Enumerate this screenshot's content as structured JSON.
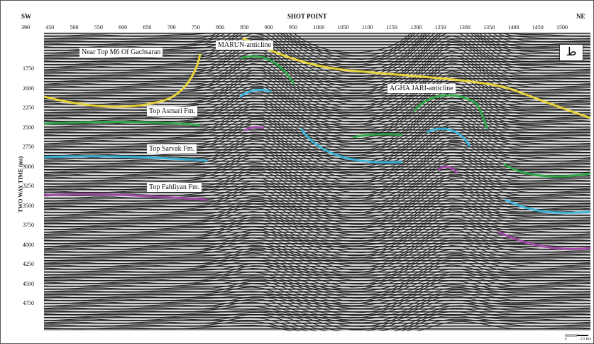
{
  "header": {
    "left_dir": "SW",
    "right_dir": "NE",
    "title": "SHOT POINT"
  },
  "x_ticks": [
    "390",
    "450",
    "500",
    "550",
    "600",
    "650",
    "700",
    "750",
    "800",
    "850",
    "900",
    "950",
    "1000",
    "1050",
    "1100",
    "1150",
    "1200",
    "1250",
    "1300",
    "1350",
    "1400",
    "1450",
    "1500"
  ],
  "y_axis": {
    "title": "TWO WAY TIME (ms)",
    "ticks": [
      "1750",
      "2000",
      "2250",
      "2500",
      "2750",
      "3000",
      "3250",
      "3500",
      "3750",
      "4000",
      "4250",
      "4500",
      "4750"
    ]
  },
  "horizons": [
    {
      "label": "Near Top M6 Of Gachsaran",
      "color": "#e8d43a"
    },
    {
      "label": "Top Asmari Fm.",
      "color": "#2fa84a"
    },
    {
      "label": "Top Sarvak Fm.",
      "color": "#3bb4d8"
    },
    {
      "label": "Top Fahliyan Fm.",
      "color": "#a24aa8"
    }
  ],
  "structures": [
    {
      "label": "MARUN-anticline"
    },
    {
      "label": "AGHA JARI-anticline"
    }
  ],
  "badge": "ط",
  "scale": {
    "zero": "0",
    "length": "2.5 Km"
  }
}
